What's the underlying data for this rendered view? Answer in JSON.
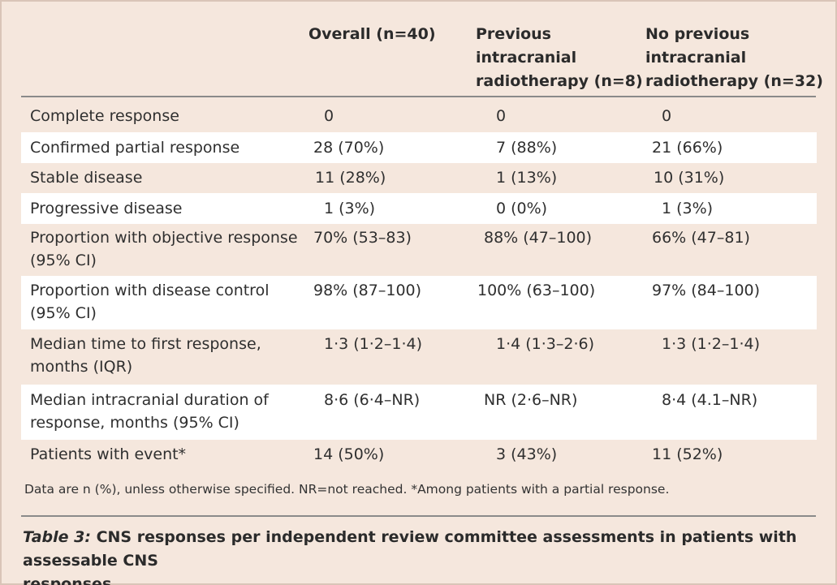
{
  "table": {
    "columns": [
      "",
      "Overall (n=40)",
      "Previous intracranial radiotherapy (n=8)",
      "No previous intracranial radiotherapy (n=32)"
    ],
    "header_lines": {
      "overall": [
        "Overall (n=40)"
      ],
      "previous": [
        "Previous",
        "intracranial",
        "radiotherapy (n=8)"
      ],
      "no_previous": [
        "No previous",
        "intracranial",
        "radiotherapy (n=32)"
      ]
    },
    "rows": [
      {
        "label_lines": [
          "Complete response"
        ],
        "overall": "0",
        "previous": "0",
        "no_previous": "0"
      },
      {
        "label_lines": [
          "Confirmed partial response"
        ],
        "overall": "28 (70%)",
        "previous": "7 (88%)",
        "no_previous": "21 (66%)"
      },
      {
        "label_lines": [
          "Stable disease"
        ],
        "overall": "11 (28%)",
        "previous": "1 (13%)",
        "no_previous": "10 (31%)"
      },
      {
        "label_lines": [
          "Progressive disease"
        ],
        "overall": "1 (3%)",
        "previous": "0 (0%)",
        "no_previous": "1 (3%)"
      },
      {
        "label_lines": [
          "Proportion with objective response",
          "(95% CI)"
        ],
        "overall": "70% (53–83)",
        "previous": "88% (47–100)",
        "no_previous": "66% (47–81)"
      },
      {
        "label_lines": [
          "Proportion with disease control",
          "(95% CI)"
        ],
        "overall": "98% (87–100)",
        "previous": "100% (63–100)",
        "no_previous": "97% (84–100)"
      },
      {
        "label_lines": [
          "Median time to first response,",
          "months (IQR)"
        ],
        "overall": "1·3 (1·2–1·4)",
        "previous": "1·4 (1·3–2·6)",
        "no_previous": "1·3 (1·2–1·4)"
      },
      {
        "label_lines": [
          "Median intracranial duration of",
          "response, months (95% CI)"
        ],
        "overall": "8·6 (6·4–NR)",
        "previous": "NR (2·6–NR)",
        "no_previous": "8·4 (4.1–NR)"
      },
      {
        "label_lines": [
          "Patients with event*"
        ],
        "overall": "14 (50%)",
        "previous": "3 (43%)",
        "no_previous": "11 (52%)"
      }
    ]
  },
  "footnote": "Data are n (%), unless otherwise specified. NR=not reached. *Among patients with a partial response.",
  "caption": {
    "label": "Table 3:",
    "text_line1": " CNS responses per independent review committee assessments in patients with assessable CNS",
    "text_line2": "responses"
  }
}
